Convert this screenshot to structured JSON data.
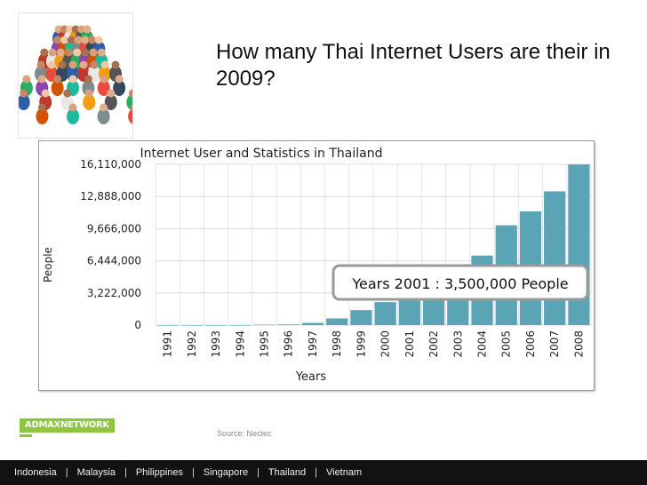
{
  "slide": {
    "title": "How many Thai Internet Users are their in 2009?",
    "source": "Source: Nectec",
    "brand": "ADMAXNETWORK",
    "footer": [
      "Indonesia",
      "Malaysia",
      "Philippines",
      "Singapore",
      "Thailand",
      "Vietnam"
    ]
  },
  "chart_data": {
    "type": "bar",
    "title": "Internet User and Statistics in Thailand",
    "xlabel": "Years",
    "ylabel": "People",
    "categories": [
      "1991",
      "1992",
      "1993",
      "1994",
      "1995",
      "1996",
      "1997",
      "1998",
      "1999",
      "2000",
      "2001",
      "2002",
      "2003",
      "2004",
      "2005",
      "2006",
      "2007",
      "2008"
    ],
    "values": [
      0,
      0,
      0,
      0,
      45000,
      70000,
      220000,
      670000,
      1500000,
      2300000,
      3500000,
      4800000,
      6000000,
      6970000,
      10000000,
      11400000,
      13400000,
      16100000
    ],
    "ylim": [
      0,
      16110000
    ],
    "yticks": [
      "0",
      "3,222,000",
      "6,444,000",
      "9,666,000",
      "12,888,000",
      "16,110,000"
    ],
    "ytick_values": [
      0,
      3222000,
      6444000,
      9666000,
      12888000,
      16110000
    ],
    "tooltip": "Years 2001 : 3,500,000 People",
    "bar_color": "#5ba4b6",
    "grid": true
  }
}
